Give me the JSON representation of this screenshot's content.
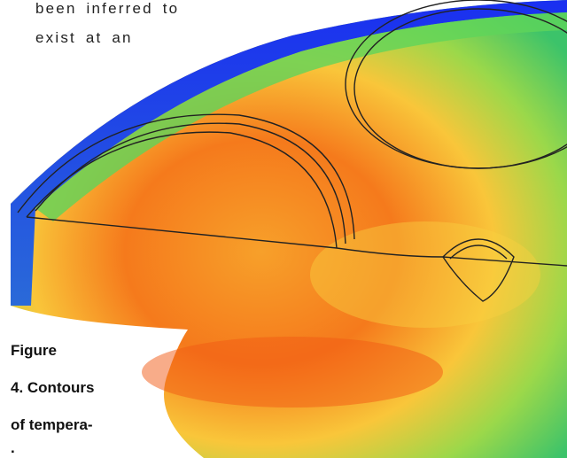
{
  "body_text": [
    "been inferred to",
    "exist at an"
  ],
  "caption": [
    "Figure",
    "4. Contours",
    "of tempera-",
    "."
  ]
}
